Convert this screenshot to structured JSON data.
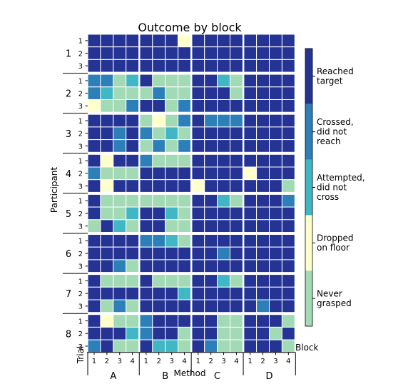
{
  "chart_data": {
    "type": "heatmap",
    "title": "Outcome by block",
    "xlabel": "Method",
    "ylabel": "Participant",
    "row_sub_label": "Trial",
    "col_sub_label": "Block",
    "participants": [
      "1",
      "2",
      "3",
      "4",
      "5",
      "6",
      "7",
      "8"
    ],
    "trials": [
      "1",
      "2",
      "3"
    ],
    "methods": [
      "A",
      "B",
      "C",
      "D"
    ],
    "blocks": [
      "1",
      "2",
      "3",
      "4"
    ],
    "categories": [
      {
        "key": "N",
        "label": "Never\ngrasped",
        "color": "#a1dab4"
      },
      {
        "key": "P",
        "label": "Dropped\non floor",
        "color": "#ffffcc"
      },
      {
        "key": "T",
        "label": "Attempted,\ndid not\ncross",
        "color": "#41b6c4"
      },
      {
        "key": "C",
        "label": "Crossed,\ndid not\nreach",
        "color": "#2c7fb8"
      },
      {
        "key": "R",
        "label": "Reached\ntarget",
        "color": "#253494"
      }
    ],
    "legend_placement": "right",
    "grid": [
      [
        "RRRR RRRP RRRR RRRR",
        "RRRR RRRR RRRR RRRR",
        "RRRR RRRR RRRR RRRR"
      ],
      [
        "CCNT RNNN RRTN RRRR",
        "CTNN NCNN RRRN RRRR",
        "PNNC RRNC RRRR RRRR"
      ],
      [
        "RRRR NPNC RCCC RRRR",
        "RRCR CNTN RRRR RRRR",
        "RRCR NCNC RRRR RRRR"
      ],
      [
        "RPRR CNNN RRRR RRRR",
        "CNNN RRRR RRRR PRRR",
        "RPRR RRRR PRRR RRRN"
      ],
      [
        "RNNN NNNN RRTN RRRC",
        "RNNT RRTN RRRR RRRR",
        "NRTN RRNN RRRR RRRR"
      ],
      [
        "RRRR CCTN RRRR RRRR",
        "RRRR RRRR RRCR RRRR",
        "RRCN RRRR RRRR RRRR"
      ],
      [
        "RNNN RNNN RRTN RRRR",
        "RRRR RRRT RRRR RRRR",
        "RNCN RRRR RRRR RCRR"
      ],
      [
        "RPNN CRRR RRNN RRRN",
        "RRRT CRRN RRNN RRNR",
        "CRNN RTTN RCNN RRRN"
      ]
    ]
  }
}
